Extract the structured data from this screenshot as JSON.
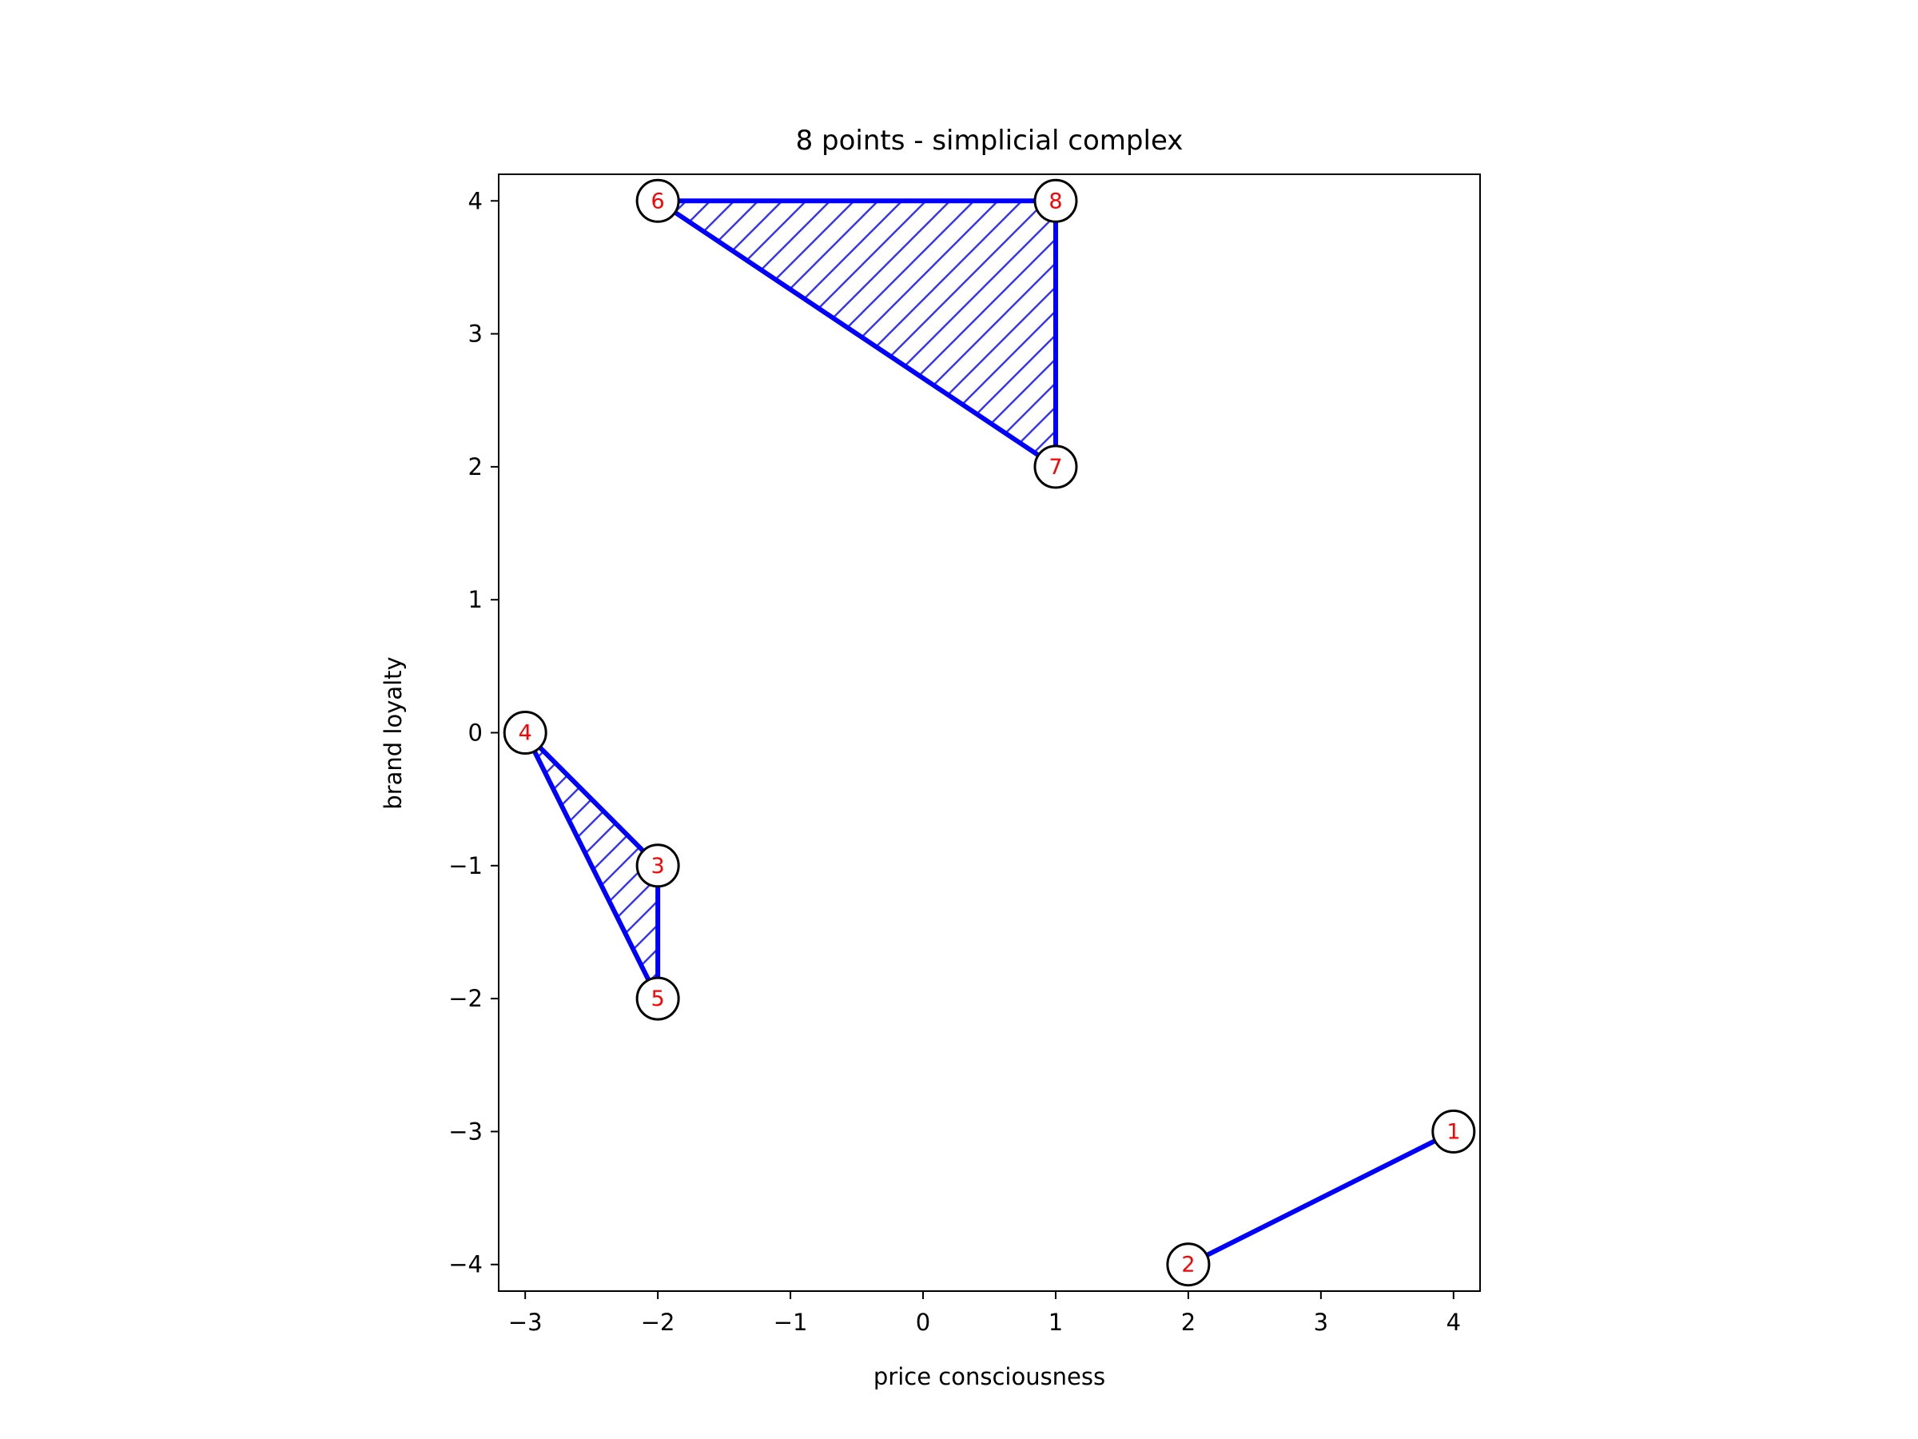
{
  "chart_data": {
    "type": "scatter",
    "title": "8 points - simplicial complex",
    "xlabel": "price consciousness",
    "ylabel": "brand loyalty",
    "xlim": [
      -3.2,
      4.2
    ],
    "ylim": [
      -4.2,
      4.2
    ],
    "xticks": [
      -3,
      -2,
      -1,
      0,
      1,
      2,
      3,
      4
    ],
    "yticks": [
      -4,
      -3,
      -2,
      -1,
      0,
      1,
      2,
      3,
      4
    ],
    "grid": false,
    "points": [
      {
        "label": "1",
        "x": 4,
        "y": -3
      },
      {
        "label": "2",
        "x": 2,
        "y": -4
      },
      {
        "label": "3",
        "x": -2,
        "y": -1
      },
      {
        "label": "4",
        "x": -3,
        "y": 0
      },
      {
        "label": "5",
        "x": -2,
        "y": -2
      },
      {
        "label": "6",
        "x": -2,
        "y": 4
      },
      {
        "label": "7",
        "x": 1,
        "y": 2
      },
      {
        "label": "8",
        "x": 1,
        "y": 4
      }
    ],
    "edges": [
      [
        "1",
        "2"
      ],
      [
        "3",
        "4"
      ],
      [
        "3",
        "5"
      ],
      [
        "4",
        "5"
      ],
      [
        "6",
        "7"
      ],
      [
        "6",
        "8"
      ],
      [
        "7",
        "8"
      ]
    ],
    "triangles": [
      [
        "3",
        "4",
        "5"
      ],
      [
        "6",
        "7",
        "8"
      ]
    ],
    "colors": {
      "edge": "#0000ff",
      "fill_hatch": "#3333ff",
      "point_label": "#ff0000",
      "point_fill": "#ffffff",
      "point_border": "#000000"
    }
  }
}
